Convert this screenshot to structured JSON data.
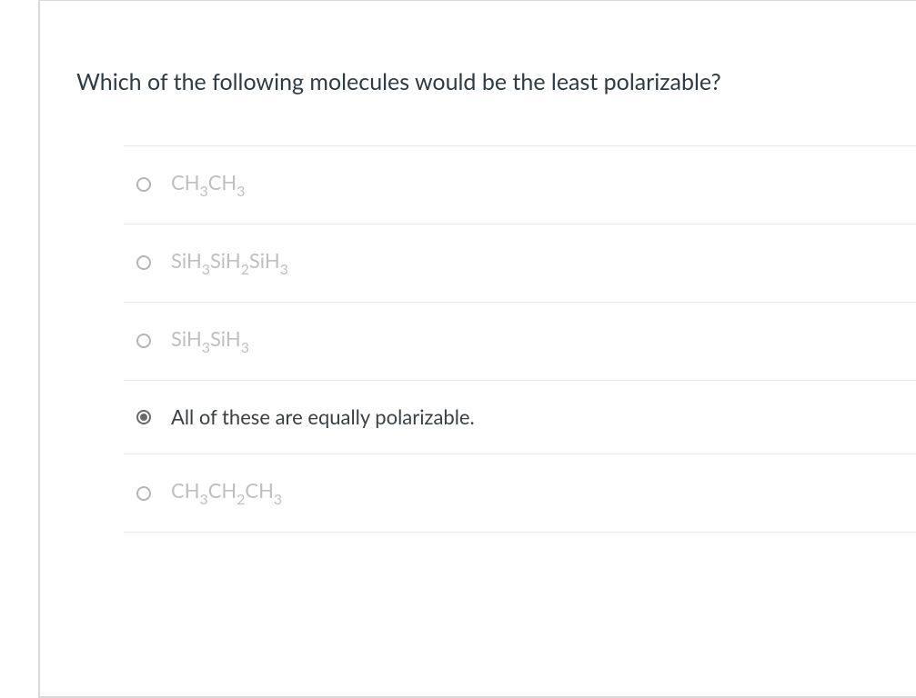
{
  "question": "Which of the following molecules would be the least polarizable?",
  "options": [
    {
      "segments": [
        "CH",
        "3",
        "CH",
        "3"
      ],
      "selected": false
    },
    {
      "segments": [
        "SiH",
        "3",
        "SiH",
        "2",
        "SiH",
        "3"
      ],
      "selected": false
    },
    {
      "segments": [
        "SiH",
        "3",
        "SiH",
        "3"
      ],
      "selected": false
    },
    {
      "plain": "All of these are equally polarizable.",
      "selected": true
    },
    {
      "segments": [
        "CH",
        "3",
        "CH",
        "2",
        "CH",
        "3"
      ],
      "selected": false
    }
  ],
  "colors": {
    "question_text": "#2d3b45",
    "faded_option": "#bfbfbf",
    "active_option": "#3a3f44",
    "radio_border": "#b5b5b5",
    "radio_selected": "#6a6a6a",
    "divider": "#e8e8e8",
    "frame_border": "#d9d9d9",
    "background": "#ffffff"
  },
  "font_sizes": {
    "question": 25,
    "option": 22
  }
}
